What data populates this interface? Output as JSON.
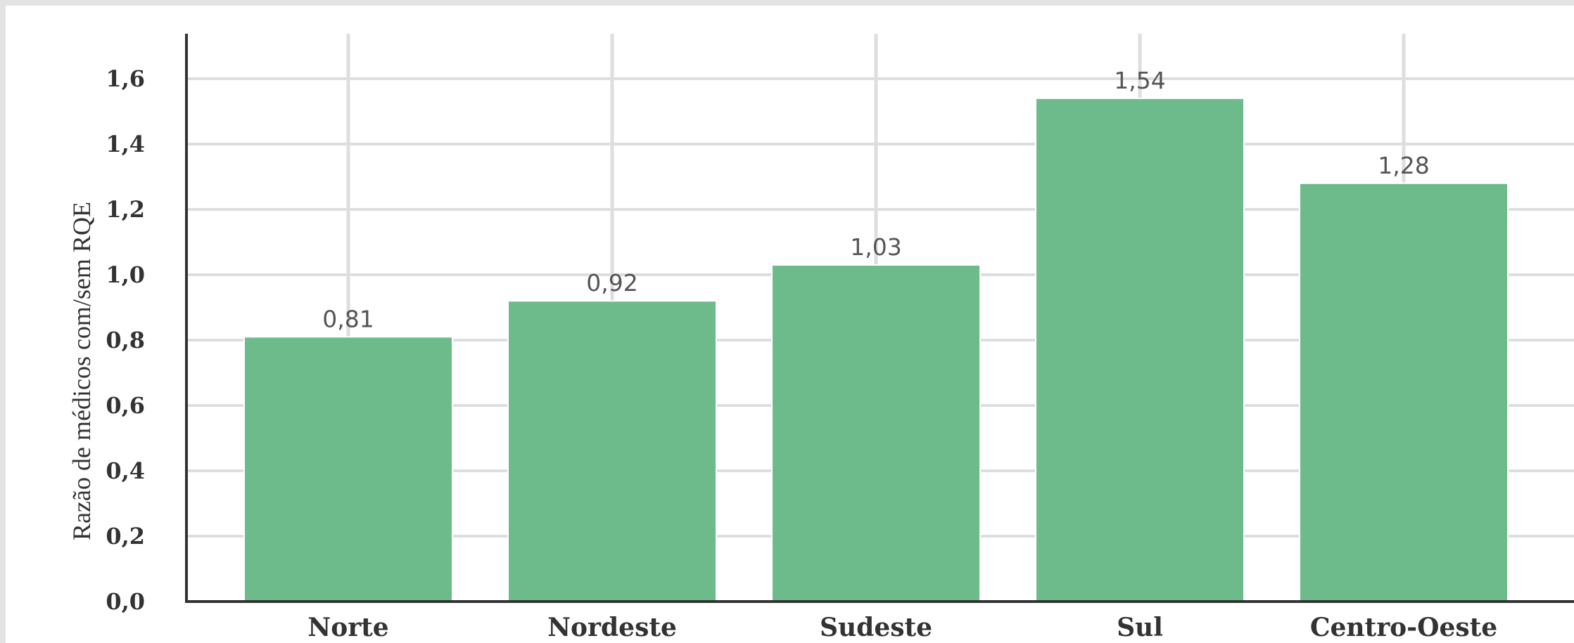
{
  "chart_data": {
    "type": "bar",
    "categories": [
      "Norte",
      "Nordeste",
      "Sudeste",
      "Sul",
      "Centro-Oeste"
    ],
    "values": [
      0.81,
      0.92,
      1.03,
      1.54,
      1.28
    ],
    "value_labels": [
      "0,81",
      "0,92",
      "1,03",
      "1,54",
      "1,28"
    ],
    "ylabel": "Razão de médicos com/sem RQE",
    "xlabel": "",
    "ylim": [
      0,
      1.74
    ],
    "yticks": [
      0,
      0.2,
      0.4,
      0.6,
      0.8,
      1.0,
      1.2,
      1.4,
      1.6
    ],
    "ytick_labels": [
      "0,0",
      "0,2",
      "0,4",
      "0,6",
      "0,8",
      "1,0",
      "1,2",
      "1,4",
      "1,6"
    ],
    "grid": true,
    "legend": "none",
    "colors": {
      "bar": "#6dbb8b",
      "grid": "#dedede",
      "axis": "#333333"
    }
  }
}
